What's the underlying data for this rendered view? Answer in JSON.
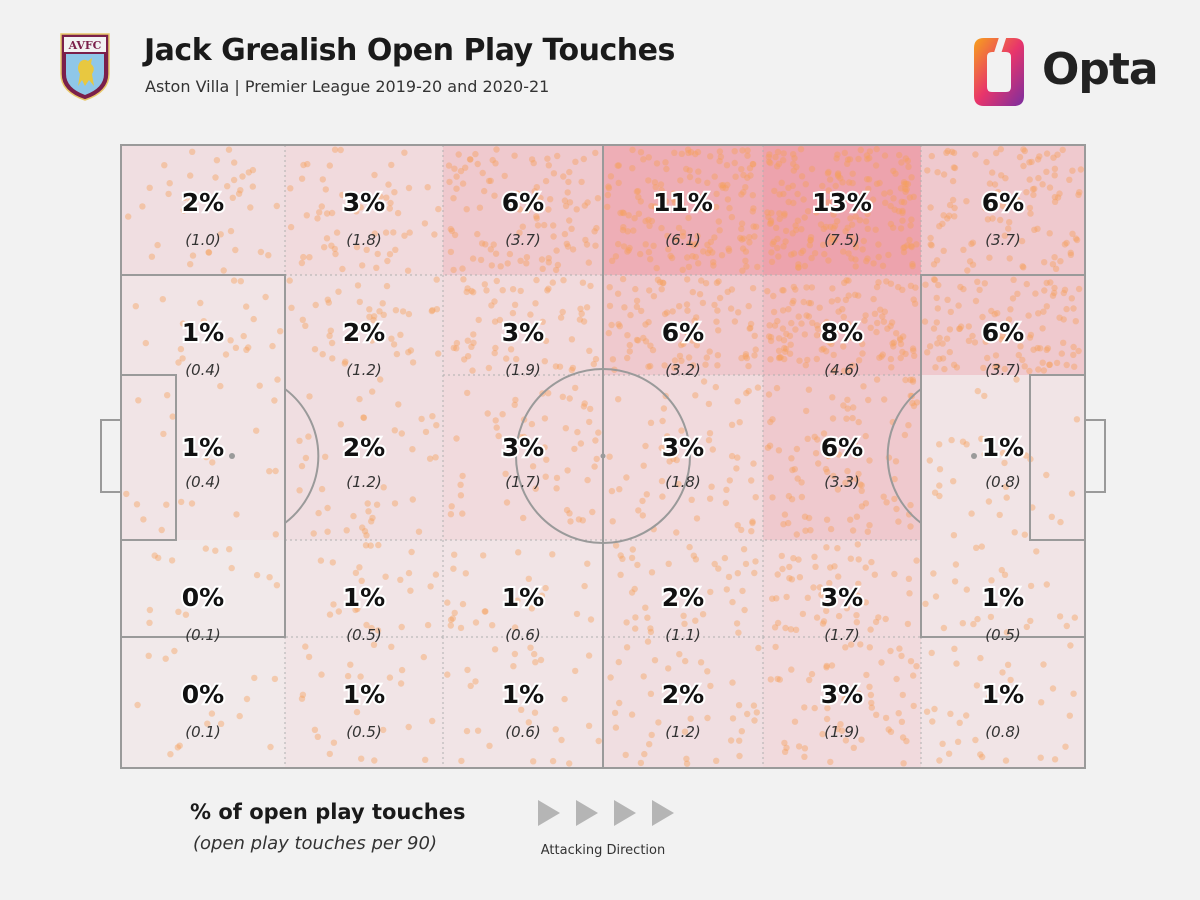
{
  "header": {
    "title": "Jack Grealish Open Play Touches",
    "subtitle": "Aston Villa | Premier League 2019-20 and 2020-21",
    "crest_text": "AVFC",
    "brand": "Opta"
  },
  "legend": {
    "title": "% of open play touches",
    "subtitle": "(open play touches per 90)",
    "direction_label": "Attacking Direction"
  },
  "colors": {
    "background": "#f2f2f2",
    "pitch_line": "#9a9a9a",
    "heat": "#e84a5f",
    "dots": "#f5a05a",
    "crest_claret": "#7a1f4a",
    "crest_blue": "#8fc7e8",
    "opta_gradient": [
      "#f7a21b",
      "#e8356b",
      "#7a2ea0"
    ]
  },
  "chart_data": {
    "type": "heatmap",
    "title": "Jack Grealish Open Play Touches",
    "subtitle": "Aston Villa | Premier League 2019-20 and 2020-21",
    "columns": 6,
    "rows": 5,
    "attacking_direction": "left-to-right",
    "cells": [
      [
        {
          "pct": "2%",
          "per90": "(1.0)",
          "value": 2,
          "per90_value": 1.0
        },
        {
          "pct": "3%",
          "per90": "(1.8)",
          "value": 3,
          "per90_value": 1.8
        },
        {
          "pct": "6%",
          "per90": "(3.7)",
          "value": 6,
          "per90_value": 3.7
        },
        {
          "pct": "11%",
          "per90": "(6.1)",
          "value": 11,
          "per90_value": 6.1
        },
        {
          "pct": "13%",
          "per90": "(7.5)",
          "value": 13,
          "per90_value": 7.5
        },
        {
          "pct": "6%",
          "per90": "(3.7)",
          "value": 6,
          "per90_value": 3.7
        }
      ],
      [
        {
          "pct": "1%",
          "per90": "(0.4)",
          "value": 1,
          "per90_value": 0.4
        },
        {
          "pct": "2%",
          "per90": "(1.2)",
          "value": 2,
          "per90_value": 1.2
        },
        {
          "pct": "3%",
          "per90": "(1.9)",
          "value": 3,
          "per90_value": 1.9
        },
        {
          "pct": "6%",
          "per90": "(3.2)",
          "value": 6,
          "per90_value": 3.2
        },
        {
          "pct": "8%",
          "per90": "(4.6)",
          "value": 8,
          "per90_value": 4.6
        },
        {
          "pct": "6%",
          "per90": "(3.7)",
          "value": 6,
          "per90_value": 3.7
        }
      ],
      [
        {
          "pct": "1%",
          "per90": "(0.4)",
          "value": 1,
          "per90_value": 0.4
        },
        {
          "pct": "2%",
          "per90": "(1.2)",
          "value": 2,
          "per90_value": 1.2
        },
        {
          "pct": "3%",
          "per90": "(1.7)",
          "value": 3,
          "per90_value": 1.7
        },
        {
          "pct": "3%",
          "per90": "(1.8)",
          "value": 3,
          "per90_value": 1.8
        },
        {
          "pct": "6%",
          "per90": "(3.3)",
          "value": 6,
          "per90_value": 3.3
        },
        {
          "pct": "1%",
          "per90": "(0.8)",
          "value": 1,
          "per90_value": 0.8
        }
      ],
      [
        {
          "pct": "0%",
          "per90": "(0.1)",
          "value": 0,
          "per90_value": 0.1
        },
        {
          "pct": "1%",
          "per90": "(0.5)",
          "value": 1,
          "per90_value": 0.5
        },
        {
          "pct": "1%",
          "per90": "(0.6)",
          "value": 1,
          "per90_value": 0.6
        },
        {
          "pct": "2%",
          "per90": "(1.1)",
          "value": 2,
          "per90_value": 1.1
        },
        {
          "pct": "3%",
          "per90": "(1.7)",
          "value": 3,
          "per90_value": 1.7
        },
        {
          "pct": "1%",
          "per90": "(0.5)",
          "value": 1,
          "per90_value": 0.5
        }
      ],
      [
        {
          "pct": "0%",
          "per90": "(0.1)",
          "value": 0,
          "per90_value": 0.1
        },
        {
          "pct": "1%",
          "per90": "(0.5)",
          "value": 1,
          "per90_value": 0.5
        },
        {
          "pct": "1%",
          "per90": "(0.6)",
          "value": 1,
          "per90_value": 0.6
        },
        {
          "pct": "2%",
          "per90": "(1.2)",
          "value": 2,
          "per90_value": 1.2
        },
        {
          "pct": "3%",
          "per90": "(1.9)",
          "value": 3,
          "per90_value": 1.9
        },
        {
          "pct": "1%",
          "per90": "(0.8)",
          "value": 1,
          "per90_value": 0.8
        }
      ]
    ]
  }
}
